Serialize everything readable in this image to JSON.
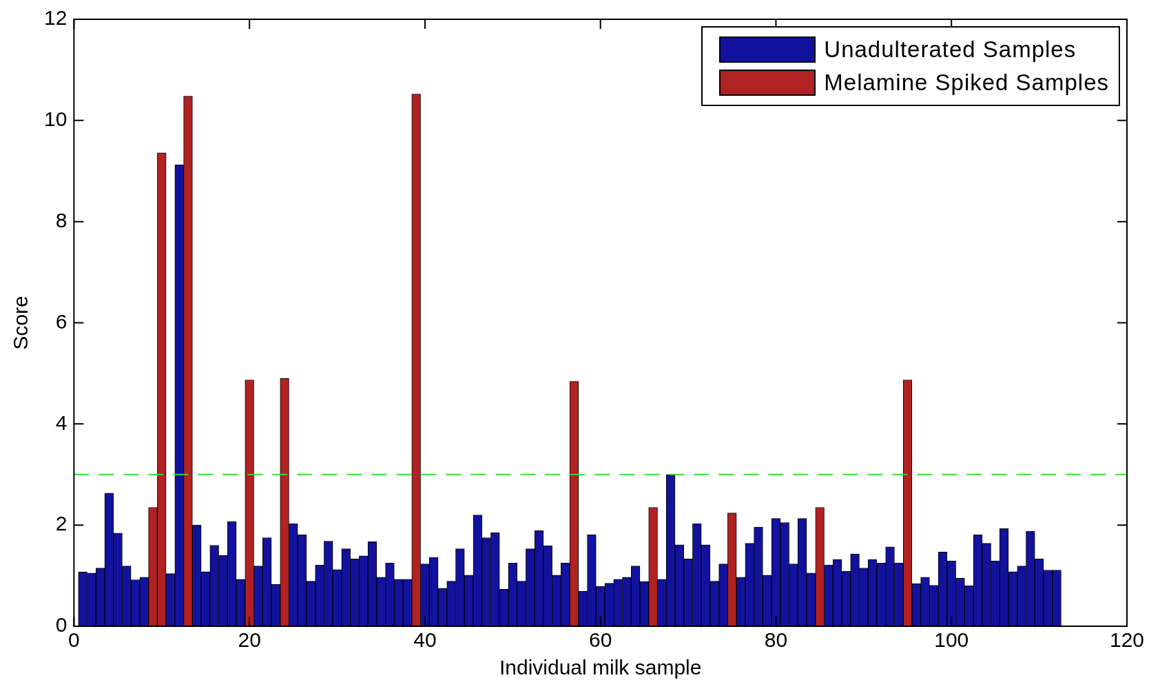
{
  "chart_data": {
    "type": "bar",
    "xlabel": "Individual milk sample",
    "ylabel": "Score",
    "x": [
      1,
      2,
      3,
      4,
      5,
      6,
      7,
      8,
      9,
      10,
      11,
      12,
      13,
      14,
      15,
      16,
      17,
      18,
      19,
      20,
      21,
      22,
      23,
      24,
      25,
      26,
      27,
      28,
      29,
      30,
      31,
      32,
      33,
      34,
      35,
      36,
      37,
      38,
      39,
      40,
      41,
      42,
      43,
      44,
      45,
      46,
      47,
      48,
      49,
      50,
      51,
      52,
      53,
      54,
      55,
      56,
      57,
      58,
      59,
      60,
      61,
      62,
      63,
      64,
      65,
      66,
      67,
      68,
      69,
      70,
      71,
      72,
      73,
      74,
      75,
      76,
      77,
      78,
      79,
      80,
      81,
      82,
      83,
      84,
      85,
      86,
      87,
      88,
      89,
      90,
      91,
      92,
      93,
      94,
      95,
      96,
      97,
      98,
      99,
      100,
      101,
      102,
      103,
      104,
      105,
      106,
      107,
      108,
      109,
      110,
      111,
      112
    ],
    "series": [
      {
        "name": "Unadulterated Samples",
        "color": "#12129e",
        "values": [
          1.07,
          1.05,
          1.15,
          2.63,
          1.84,
          1.19,
          0.92,
          0.97,
          null,
          null,
          1.04,
          9.12,
          null,
          2.0,
          1.08,
          1.6,
          1.4,
          2.07,
          0.93,
          null,
          1.19,
          1.75,
          0.83,
          null,
          2.03,
          1.81,
          0.89,
          1.21,
          1.68,
          1.12,
          1.53,
          1.33,
          1.39,
          1.67,
          0.97,
          1.25,
          0.93,
          0.93,
          null,
          1.23,
          1.36,
          0.75,
          0.89,
          1.53,
          1.01,
          2.2,
          1.75,
          1.85,
          0.73,
          1.25,
          0.89,
          1.53,
          1.89,
          1.59,
          1.01,
          1.25,
          null,
          0.69,
          1.81,
          0.79,
          0.85,
          0.93,
          0.97,
          1.19,
          0.88,
          null,
          0.93,
          3.0,
          1.61,
          1.33,
          2.03,
          1.61,
          0.89,
          1.23,
          null,
          0.97,
          1.64,
          1.96,
          1.01,
          2.13,
          2.05,
          1.23,
          2.13,
          1.05,
          null,
          1.21,
          1.32,
          1.09,
          1.43,
          1.15,
          1.32,
          1.25,
          1.57,
          1.25,
          null,
          0.84,
          0.97,
          0.81,
          1.47,
          1.29,
          0.95,
          0.8,
          1.81,
          1.64,
          1.29,
          1.93,
          1.08,
          1.19,
          1.88,
          1.33,
          1.11,
          1.11
        ]
      },
      {
        "name": "Melamine Spiked Samples",
        "color": "#b22222",
        "values": [
          null,
          null,
          null,
          null,
          null,
          null,
          null,
          null,
          2.35,
          9.36,
          null,
          null,
          10.48,
          null,
          null,
          null,
          null,
          null,
          null,
          4.87,
          null,
          null,
          null,
          4.9,
          null,
          null,
          null,
          null,
          null,
          null,
          null,
          null,
          null,
          null,
          null,
          null,
          null,
          null,
          10.52,
          null,
          null,
          null,
          null,
          null,
          null,
          null,
          null,
          null,
          null,
          null,
          null,
          null,
          null,
          null,
          null,
          null,
          4.84,
          null,
          null,
          null,
          null,
          null,
          null,
          null,
          null,
          2.35,
          null,
          null,
          null,
          null,
          null,
          null,
          null,
          null,
          2.24,
          null,
          null,
          null,
          null,
          null,
          null,
          null,
          null,
          null,
          2.35,
          null,
          null,
          null,
          null,
          null,
          null,
          null,
          null,
          null,
          4.87,
          null,
          null,
          null,
          null,
          null,
          null,
          null,
          null,
          null,
          null,
          null,
          null,
          null,
          null,
          null,
          null,
          null
        ]
      }
    ],
    "xlim": [
      0,
      120
    ],
    "xticks": [
      0,
      20,
      40,
      60,
      80,
      100,
      120
    ],
    "ylim": [
      0,
      12
    ],
    "yticks": [
      0,
      2,
      4,
      6,
      8,
      10,
      12
    ],
    "ref_lines": [
      {
        "axis": "y",
        "value": 3,
        "color": "#33dd33",
        "line_style": "dashed"
      }
    ],
    "legend": "top right"
  }
}
